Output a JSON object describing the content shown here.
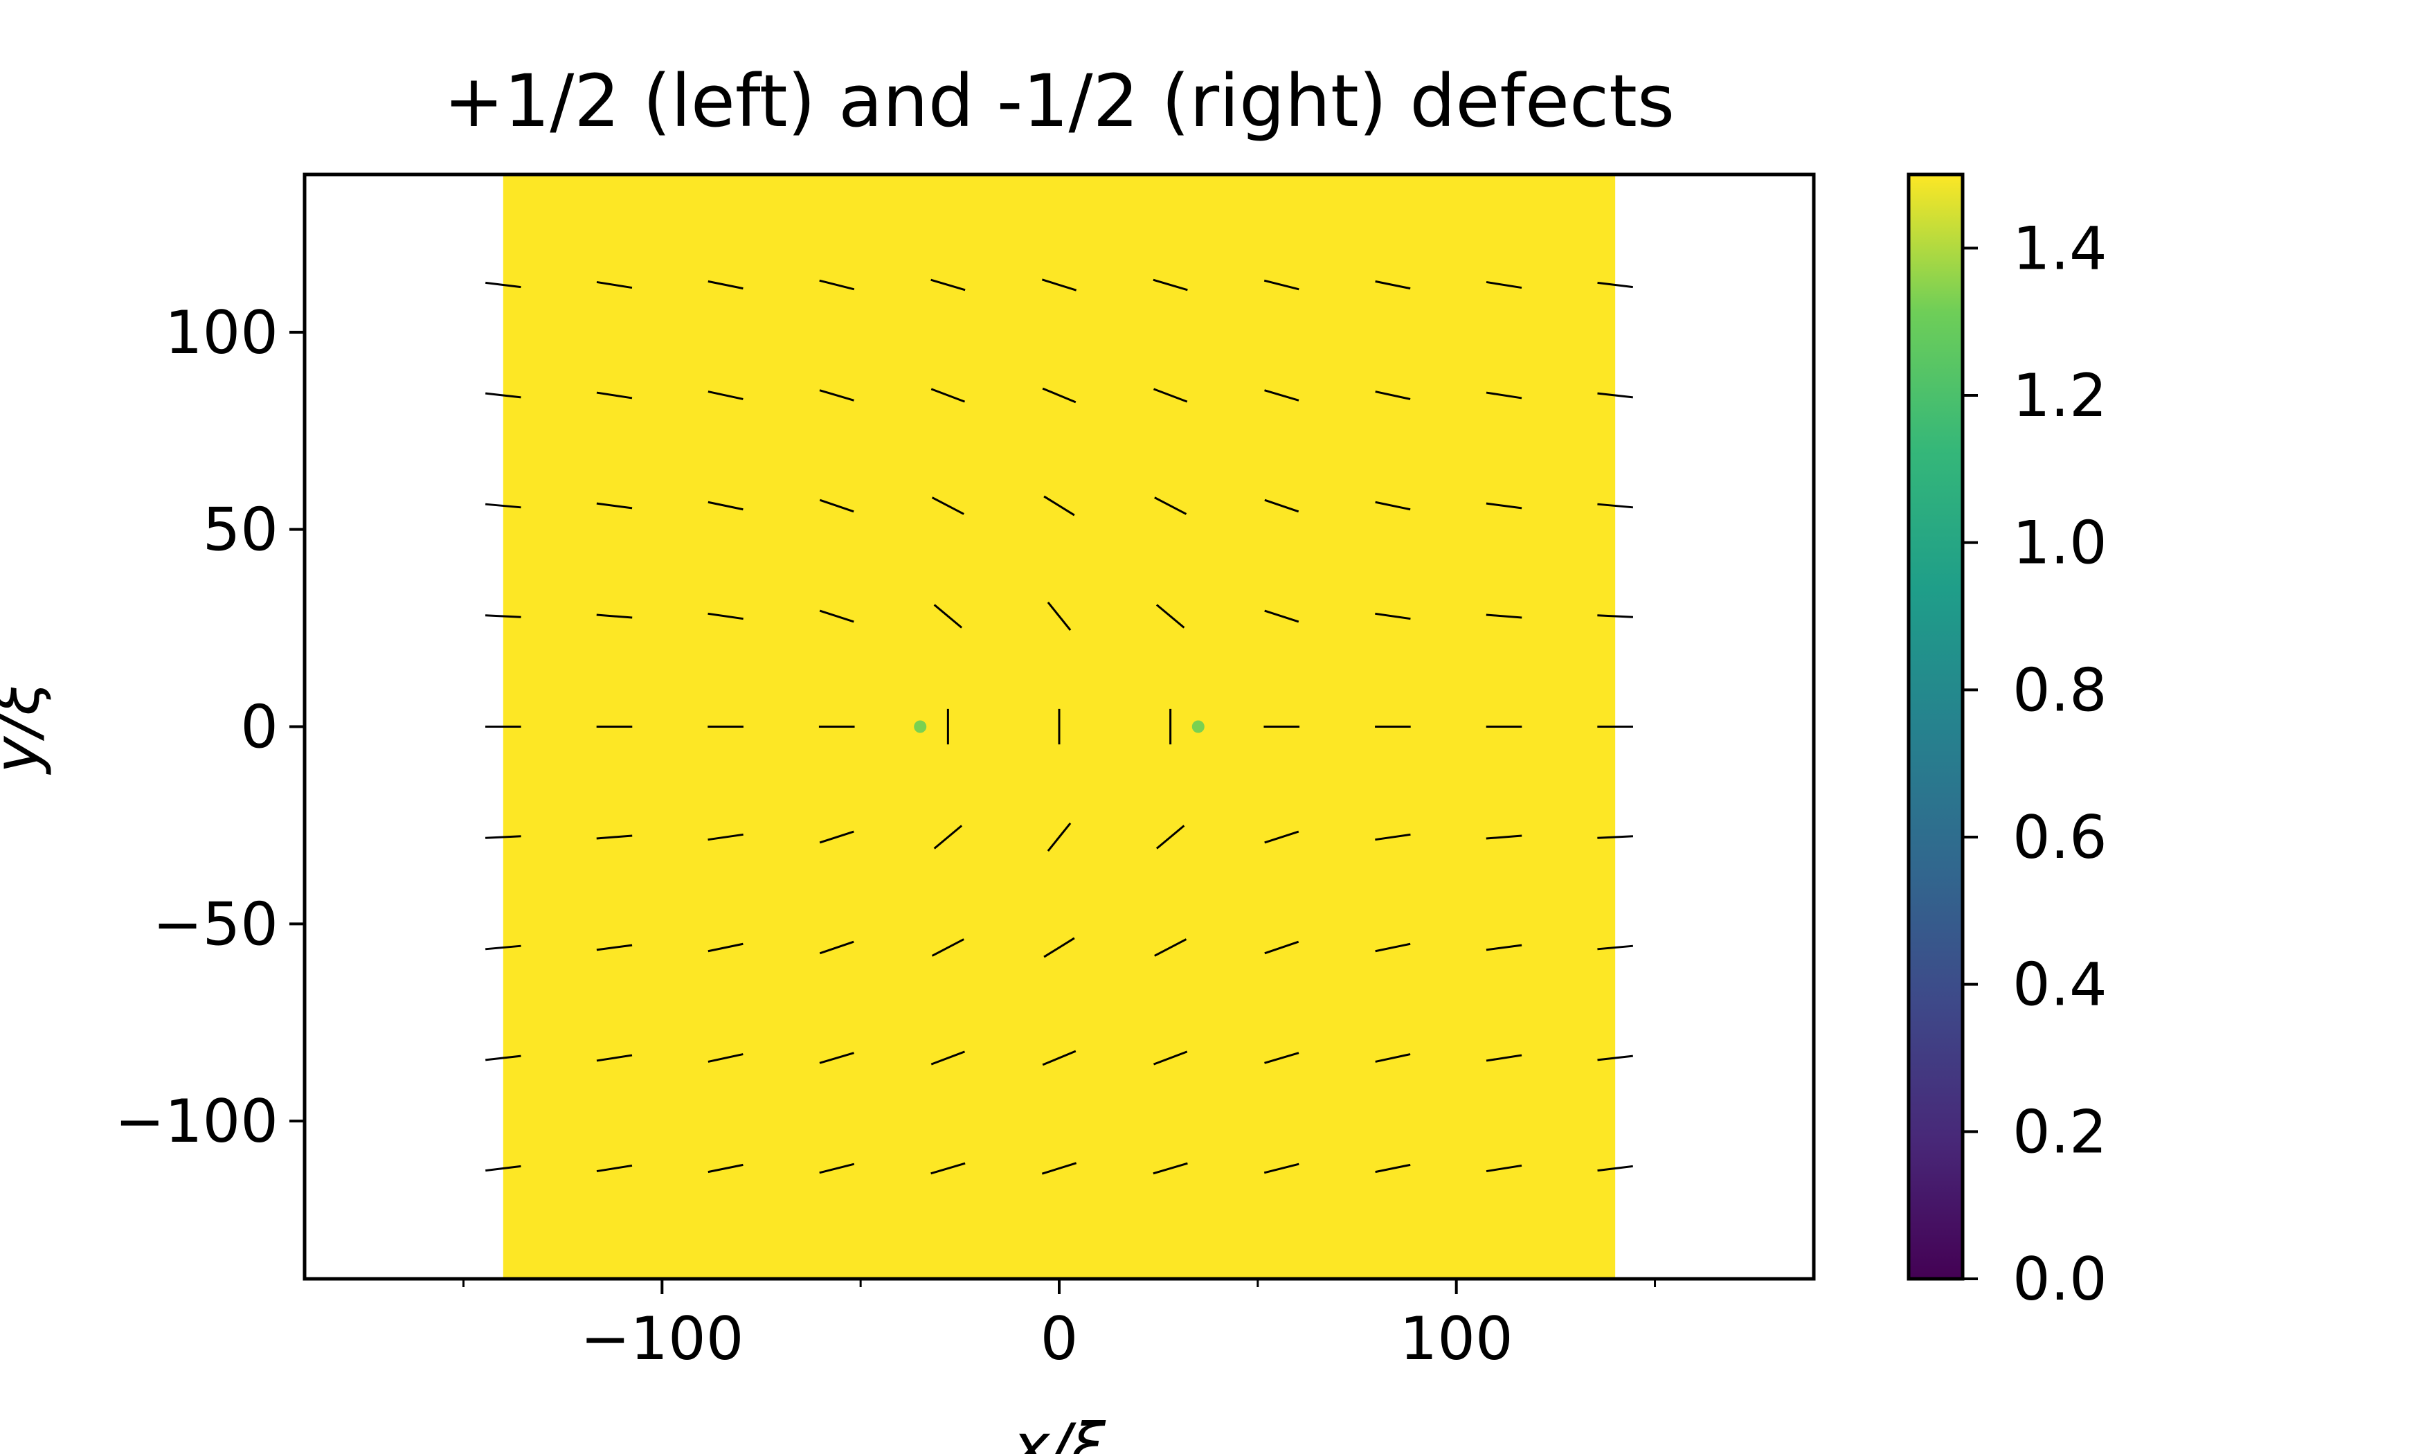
{
  "chart_data": {
    "type": "heatmap",
    "title": "+1/2 (left) and -1/2 (right) defects",
    "xlabel": "x/ξ",
    "ylabel": "y/ξ",
    "xlim": [
      -190,
      190
    ],
    "ylim": [
      -140,
      140
    ],
    "field_extent": {
      "x": [
        -140,
        140
      ],
      "y": [
        -140,
        140
      ]
    },
    "xticks": [
      -100,
      0,
      100
    ],
    "xtick_labels": [
      "−100",
      "0",
      "100"
    ],
    "xminor": [
      -150,
      -50,
      50,
      150
    ],
    "yticks": [
      100,
      50,
      0,
      -50,
      -100
    ],
    "ytick_labels": [
      "100",
      "50",
      "0",
      "−50",
      "−100"
    ],
    "background_value": 1.5,
    "defects": [
      {
        "charge": 0.5,
        "x": -35,
        "y": 0
      },
      {
        "charge": -0.5,
        "x": 35,
        "y": 0
      }
    ],
    "director_grid": {
      "x": [
        -140,
        -112,
        -84,
        -56,
        -28,
        0,
        28,
        56,
        84,
        112,
        140
      ],
      "y": [
        112,
        84,
        56,
        28,
        0,
        -28,
        -56,
        -84,
        -112
      ],
      "segment_length": 9
    },
    "colorbar": {
      "colormap": "viridis",
      "range": [
        0.0,
        1.5
      ],
      "ticks": [
        0.0,
        0.2,
        0.4,
        0.6,
        0.8,
        1.0,
        1.2,
        1.4
      ],
      "tick_labels": [
        "0.0",
        "0.2",
        "0.4",
        "0.6",
        "0.8",
        "1.0",
        "1.2",
        "1.4"
      ]
    },
    "colors": {
      "background_field": "#fde725",
      "defect_core": "#7ad151",
      "director": "#000000"
    },
    "grid": false
  }
}
